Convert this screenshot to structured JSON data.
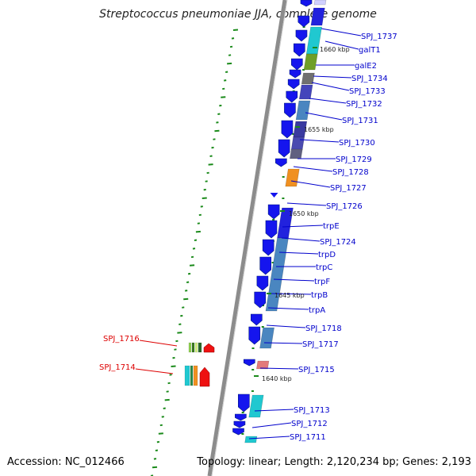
{
  "title": "Streptococcus pneumoniae JJA, complete genome",
  "accession": "Accession: NC_012466",
  "summary": "Topology: linear; Length: 2,120,234 bp; Genes: 2,193",
  "colors": {
    "backbone": "#8c8c8c",
    "tick": "#1a8a1a",
    "label_right": "#0000cc",
    "label_left": "#dd0000"
  },
  "kbp_labels": [
    "1660 kbp",
    "1655 kbp",
    "1650 kbp",
    "1645 kbp",
    "1640 kbp"
  ],
  "genes_right": [
    "SPJ_1737",
    "galT1",
    "galE2",
    "SPJ_1734",
    "SPJ_1733",
    "SPJ_1732",
    "SPJ_1731",
    "SPJ_1730",
    "SPJ_1729",
    "SPJ_1728",
    "SPJ_1727",
    "SPJ_1726",
    "trpE",
    "SPJ_1724",
    "trpD",
    "trpC",
    "trpF",
    "trpB",
    "trpA",
    "SPJ_1718",
    "SPJ_1717",
    "SPJ_1715",
    "SPJ_1713",
    "SPJ_1712",
    "SPJ_1711"
  ],
  "genes_left": [
    "SPJ_1716",
    "SPJ_1714"
  ]
}
